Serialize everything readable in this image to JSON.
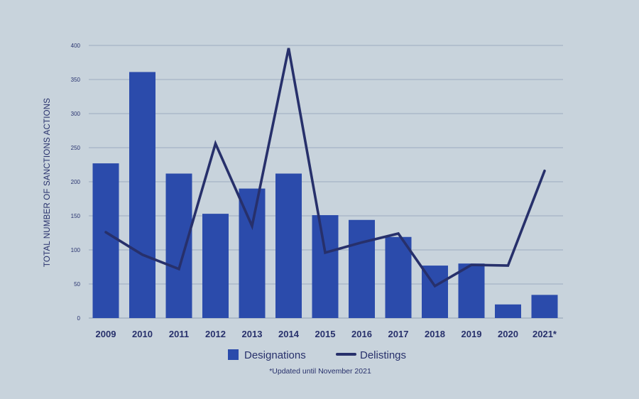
{
  "chart_data": {
    "type": "bar",
    "ylabel": "TOTAL NUMBER OF SANCTIONS ACTIONS",
    "ylim": [
      0,
      400
    ],
    "yticks": [
      0,
      50,
      100,
      150,
      200,
      250,
      300,
      350,
      400
    ],
    "categories": [
      "2009",
      "2010",
      "2011",
      "2012",
      "2013",
      "2014",
      "2015",
      "2016",
      "2017",
      "2018",
      "2019",
      "2020",
      "2021*"
    ],
    "series": [
      {
        "name": "Designations",
        "type": "bar",
        "color": "#2b4bab",
        "values": [
          227,
          361,
          212,
          153,
          190,
          212,
          151,
          144,
          119,
          77,
          80,
          20,
          34
        ]
      },
      {
        "name": "Delistings",
        "type": "line",
        "color": "#27306b",
        "values": [
          126,
          93,
          72,
          256,
          135,
          396,
          96,
          111,
          124,
          47,
          78,
          77,
          216
        ]
      }
    ],
    "grid": true,
    "legend_position": "bottom-center",
    "footnote": "*Updated until November 2021"
  }
}
